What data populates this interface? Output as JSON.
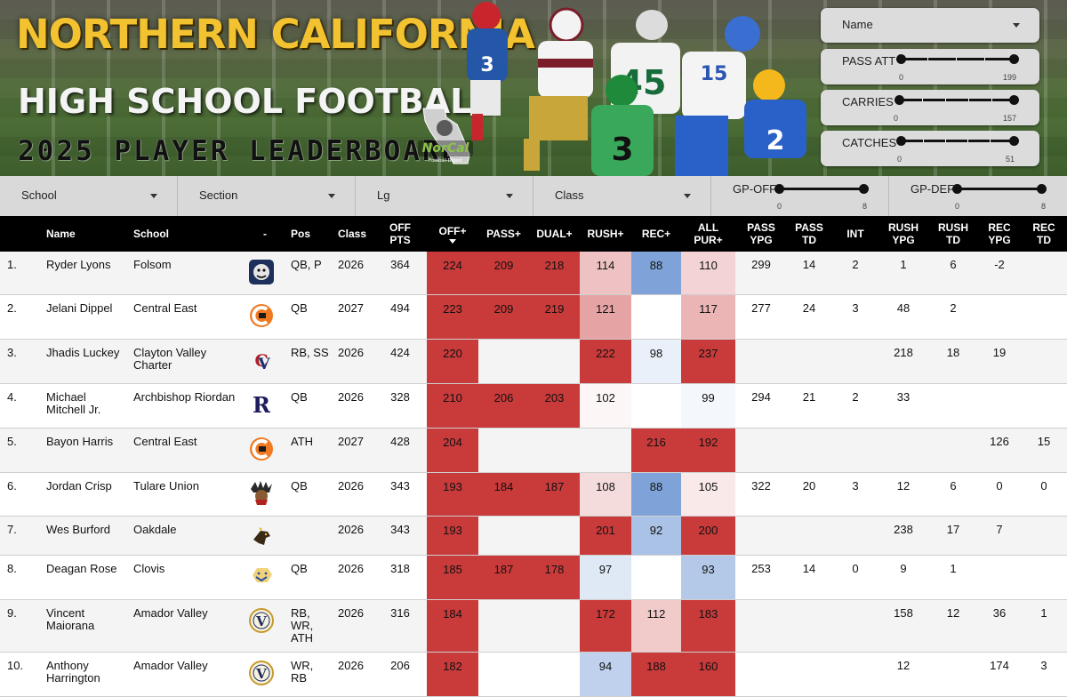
{
  "header": {
    "title_line1": "NORTHERN CALIFORNIA",
    "title_line2": "HIGH SCHOOL FOOTBALL",
    "title_line3": "2025 PLAYER LEADERBOARD",
    "logo_text": "NorCal",
    "logo_sub": "Football Digest"
  },
  "controls": {
    "name_dropdown": "Name",
    "sliders": [
      {
        "label": "PASS ATT",
        "min": "0",
        "max": "199"
      },
      {
        "label": "CARRIES",
        "min": "0",
        "max": "157"
      },
      {
        "label": "CATCHES",
        "min": "0",
        "max": "51"
      }
    ]
  },
  "filters": {
    "dropdowns": [
      "School",
      "Section",
      "Lg",
      "Class"
    ],
    "sliders": [
      {
        "label": "GP-OFF",
        "min": "0",
        "max": "8"
      },
      {
        "label": "GP-DEF",
        "min": "0",
        "max": "8"
      }
    ]
  },
  "table": {
    "headers": [
      "Name",
      "School",
      "-",
      "Pos",
      "Class",
      "OFF PTS",
      "OFF+",
      "PASS+",
      "DUAL+",
      "RUSH+",
      "REC+",
      "ALL PUR+",
      "PASS YPG",
      "PASS TD",
      "INT",
      "RUSH YPG",
      "RUSH TD",
      "REC YPG",
      "REC TD"
    ],
    "header_lines": [
      [
        "Name"
      ],
      [
        "School"
      ],
      [
        "-"
      ],
      [
        "Pos"
      ],
      [
        "Class"
      ],
      [
        "OFF",
        "PTS"
      ],
      [
        "OFF+"
      ],
      [
        "PASS+"
      ],
      [
        "DUAL+"
      ],
      [
        "RUSH+"
      ],
      [
        "REC+"
      ],
      [
        "ALL",
        "PUR+"
      ],
      [
        "PASS",
        "YPG"
      ],
      [
        "PASS",
        "TD"
      ],
      [
        "INT"
      ],
      [
        "RUSH",
        "YPG"
      ],
      [
        "RUSH",
        "TD"
      ],
      [
        "REC",
        "YPG"
      ],
      [
        "REC",
        "TD"
      ]
    ],
    "rows": [
      {
        "rank": "1.",
        "name": "Ryder Lyons",
        "school": "Folsom",
        "logo": "bulldog-logo-icon",
        "pos": "QB, P",
        "class": "2026",
        "off_pts": "364",
        "off_plus": "224",
        "pass_plus": "209",
        "dual_plus": "218",
        "rush_plus": "114",
        "rec_plus": "88",
        "all_pur_plus": "110",
        "pass_ypg": "299",
        "pass_td": "14",
        "int": "2",
        "rush_ypg": "1",
        "rush_td": "6",
        "rec_ypg": "-2",
        "rec_td": ""
      },
      {
        "rank": "2.",
        "name": "Jelani Dippel",
        "school": "Central East",
        "logo": "ce-logo-icon",
        "pos": "QB",
        "class": "2027",
        "off_pts": "494",
        "off_plus": "223",
        "pass_plus": "209",
        "dual_plus": "219",
        "rush_plus": "121",
        "rec_plus": "",
        "all_pur_plus": "117",
        "pass_ypg": "277",
        "pass_td": "24",
        "int": "3",
        "rush_ypg": "48",
        "rush_td": "2",
        "rec_ypg": "",
        "rec_td": ""
      },
      {
        "rank": "3.",
        "name": "Jhadis Luckey",
        "school": "Clayton Valley Charter",
        "logo": "cv-logo-icon",
        "pos": "RB, SS",
        "class": "2026",
        "off_pts": "424",
        "off_plus": "220",
        "pass_plus": "",
        "dual_plus": "",
        "rush_plus": "222",
        "rec_plus": "98",
        "all_pur_plus": "237",
        "pass_ypg": "",
        "pass_td": "",
        "int": "",
        "rush_ypg": "218",
        "rush_td": "18",
        "rec_ypg": "19",
        "rec_td": ""
      },
      {
        "rank": "4.",
        "name": "Michael Mitchell Jr.",
        "school": "Archbishop Riordan",
        "logo": "riordan-r-logo-icon",
        "pos": "QB",
        "class": "2026",
        "off_pts": "328",
        "off_plus": "210",
        "pass_plus": "206",
        "dual_plus": "203",
        "rush_plus": "102",
        "rec_plus": "",
        "all_pur_plus": "99",
        "pass_ypg": "294",
        "pass_td": "21",
        "int": "2",
        "rush_ypg": "33",
        "rush_td": "",
        "rec_ypg": "",
        "rec_td": ""
      },
      {
        "rank": "5.",
        "name": "Bayon Harris",
        "school": "Central East",
        "logo": "ce-logo-icon",
        "pos": "ATH",
        "class": "2027",
        "off_pts": "428",
        "off_plus": "204",
        "pass_plus": "",
        "dual_plus": "",
        "rush_plus": "",
        "rec_plus": "216",
        "all_pur_plus": "192",
        "pass_ypg": "",
        "pass_td": "",
        "int": "",
        "rush_ypg": "",
        "rush_td": "",
        "rec_ypg": "126",
        "rec_td": "15"
      },
      {
        "rank": "6.",
        "name": "Jordan Crisp",
        "school": "Tulare Union",
        "logo": "redskins-head-logo-icon",
        "pos": "QB",
        "class": "2026",
        "off_pts": "343",
        "off_plus": "193",
        "pass_plus": "184",
        "dual_plus": "187",
        "rush_plus": "108",
        "rec_plus": "88",
        "all_pur_plus": "105",
        "pass_ypg": "322",
        "pass_td": "20",
        "int": "3",
        "rush_ypg": "12",
        "rush_td": "6",
        "rec_ypg": "0",
        "rec_td": "0"
      },
      {
        "rank": "7.",
        "name": "Wes Burford",
        "school": "Oakdale",
        "logo": "mustang-logo-icon",
        "pos": "",
        "class": "2026",
        "off_pts": "343",
        "off_plus": "193",
        "pass_plus": "",
        "dual_plus": "",
        "rush_plus": "201",
        "rec_plus": "92",
        "all_pur_plus": "200",
        "pass_ypg": "",
        "pass_td": "",
        "int": "",
        "rush_ypg": "238",
        "rush_td": "17",
        "rec_ypg": "7",
        "rec_td": ""
      },
      {
        "rank": "8.",
        "name": "Deagan Rose",
        "school": "Clovis",
        "logo": "cougar-logo-icon",
        "pos": "QB",
        "class": "2026",
        "off_pts": "318",
        "off_plus": "185",
        "pass_plus": "187",
        "dual_plus": "178",
        "rush_plus": "97",
        "rec_plus": "",
        "all_pur_plus": "93",
        "pass_ypg": "253",
        "pass_td": "14",
        "int": "0",
        "rush_ypg": "9",
        "rush_td": "1",
        "rec_ypg": "",
        "rec_td": ""
      },
      {
        "rank": "9.",
        "name": "Vincent Maiorana",
        "school": "Amador Valley",
        "logo": "av-logo-icon",
        "pos": "RB, WR, ATH",
        "class": "2026",
        "off_pts": "316",
        "off_plus": "184",
        "pass_plus": "",
        "dual_plus": "",
        "rush_plus": "172",
        "rec_plus": "112",
        "all_pur_plus": "183",
        "pass_ypg": "",
        "pass_td": "",
        "int": "",
        "rush_ypg": "158",
        "rush_td": "12",
        "rec_ypg": "36",
        "rec_td": "1"
      },
      {
        "rank": "10.",
        "name": "Anthony Harrington",
        "school": "Amador Valley",
        "logo": "av-logo-icon",
        "pos": "WR, RB",
        "class": "2026",
        "off_pts": "206",
        "off_plus": "182",
        "pass_plus": "",
        "dual_plus": "",
        "rush_plus": "94",
        "rec_plus": "188",
        "all_pur_plus": "160",
        "pass_ypg": "",
        "pass_td": "",
        "int": "",
        "rush_ypg": "12",
        "rush_td": "",
        "rec_ypg": "174",
        "rec_td": "3"
      }
    ]
  },
  "colors": {
    "title_gold": "#f2c230",
    "high_red": "#c93a3a",
    "low_blue": "#7fa3d8",
    "header_black": "#000000"
  }
}
